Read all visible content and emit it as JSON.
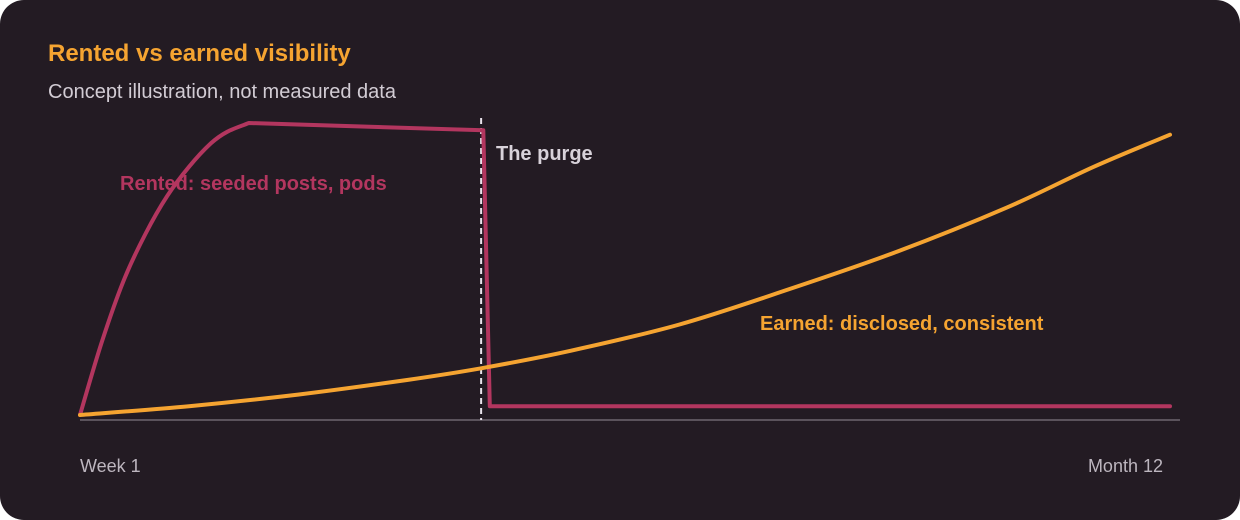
{
  "title": "Rented vs earned visibility",
  "subtitle": "Concept illustration, not measured data",
  "chart_data": {
    "type": "line",
    "x_start_label": "Week 1",
    "x_end_label": "Month 12",
    "xlim": [
      0,
      1
    ],
    "ylim": [
      0,
      1
    ],
    "grid": false,
    "event": {
      "x": 0.368,
      "label": "The purge"
    },
    "series": [
      {
        "name": "Rented: seeded posts, pods",
        "color": "#b3365f",
        "points": [
          [
            0.0,
            0.0
          ],
          [
            0.02,
            0.25
          ],
          [
            0.04,
            0.46
          ],
          [
            0.06,
            0.62
          ],
          [
            0.08,
            0.75
          ],
          [
            0.1,
            0.85
          ],
          [
            0.12,
            0.93
          ],
          [
            0.135,
            0.97
          ],
          [
            0.155,
            1.0
          ],
          [
            0.37,
            0.975
          ],
          [
            0.376,
            0.03
          ],
          [
            1.0,
            0.03
          ]
        ]
      },
      {
        "name": "Earned: disclosed, consistent",
        "color": "#f5a431",
        "points": [
          [
            0.0,
            0.0
          ],
          [
            0.1,
            0.03
          ],
          [
            0.2,
            0.07
          ],
          [
            0.3,
            0.12
          ],
          [
            0.368,
            0.16
          ],
          [
            0.45,
            0.22
          ],
          [
            0.55,
            0.31
          ],
          [
            0.65,
            0.43
          ],
          [
            0.75,
            0.56
          ],
          [
            0.85,
            0.71
          ],
          [
            0.93,
            0.85
          ],
          [
            1.0,
            0.96
          ]
        ]
      }
    ]
  },
  "colors": {
    "background": "#231b23",
    "title": "#f5a431",
    "subtitle": "#d2ccd4",
    "axis": "#6e6670",
    "event_line": "#e8e2ea"
  }
}
